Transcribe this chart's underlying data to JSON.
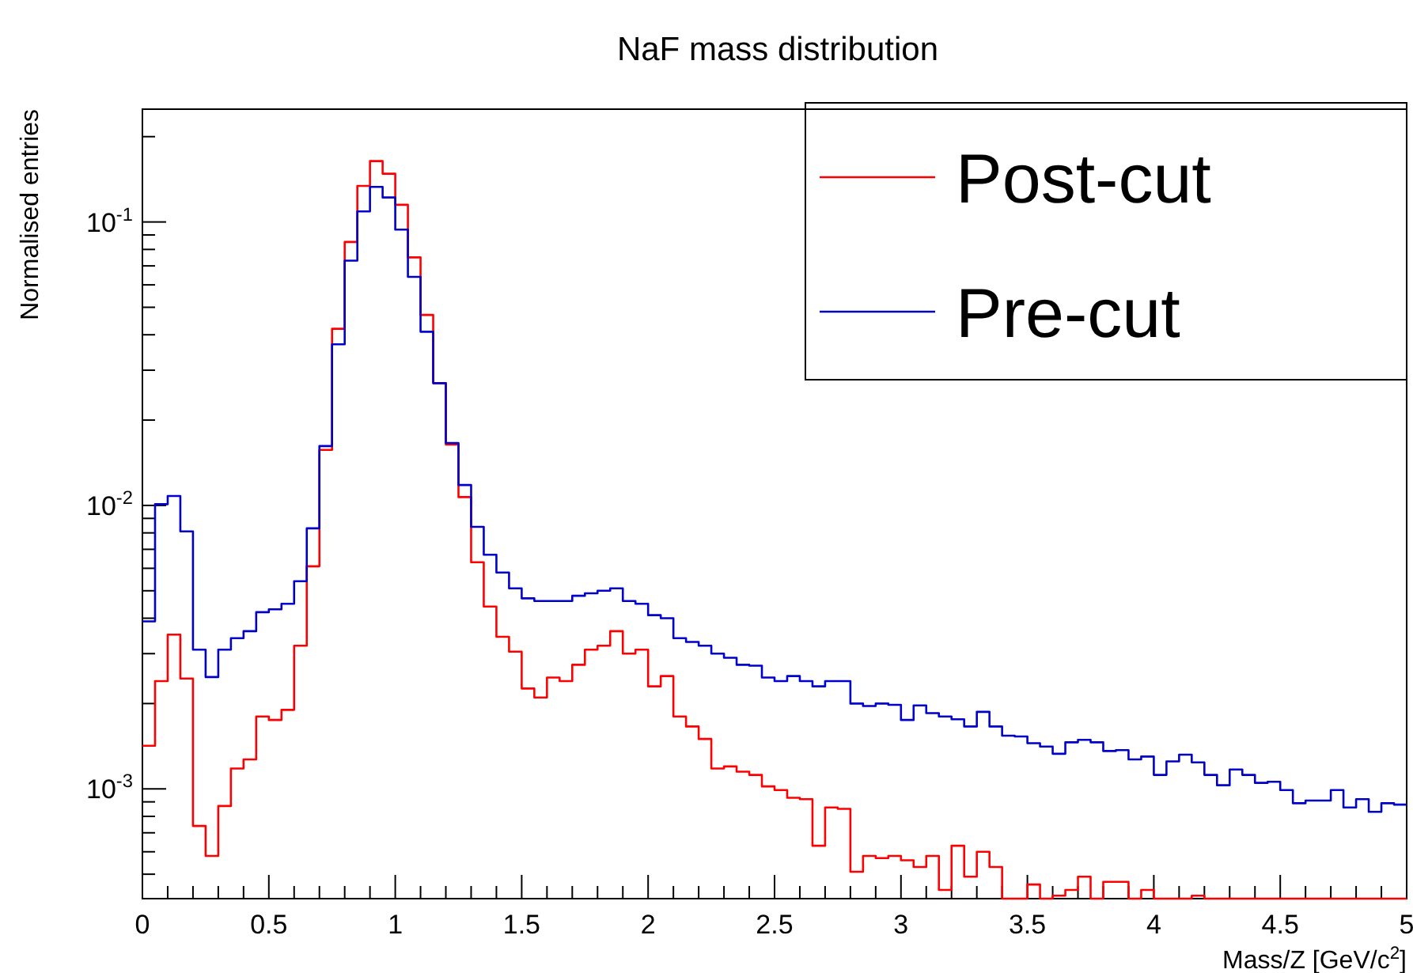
{
  "chart_data": {
    "type": "histogram",
    "title": "NaF mass distribution",
    "xlabel": "Mass/Z [GeV/c$^{2}$]",
    "ylabel": "Normalised entries",
    "bins": [
      0,
      0.05,
      0.1,
      0.15,
      0.2,
      0.25,
      0.3,
      0.35,
      0.4,
      0.45,
      0.5,
      0.55,
      0.6,
      0.65,
      0.7,
      0.75,
      0.8,
      0.85,
      0.9,
      0.95,
      1,
      1.05,
      1.1,
      1.15,
      1.2,
      1.25,
      1.3,
      1.35,
      1.4,
      1.45,
      1.5,
      1.55,
      1.6,
      1.65,
      1.7,
      1.75,
      1.8,
      1.85,
      1.9,
      1.95,
      2,
      2.05,
      2.1,
      2.15,
      2.2,
      2.25,
      2.3,
      2.35,
      2.4,
      2.45,
      2.5,
      2.55,
      2.6,
      2.65,
      2.7,
      2.75,
      2.8,
      2.85,
      2.9,
      2.95,
      3,
      3.05,
      3.1,
      3.15,
      3.2,
      3.25,
      3.3,
      3.35,
      3.4,
      3.45,
      3.5,
      3.55,
      3.6,
      3.65,
      3.7,
      3.75,
      3.8,
      3.85,
      3.9,
      3.95,
      4,
      4.05,
      4.1,
      4.15,
      4.2,
      4.25,
      4.3,
      4.35,
      4.4,
      4.45,
      4.5,
      4.55,
      4.6,
      4.65,
      4.7,
      4.75,
      4.8,
      4.85,
      4.9,
      4.95,
      5
    ],
    "series": [
      {
        "name": "Post-cut",
        "color": "#ff0000",
        "values": [
          0.00142,
          0.0024,
          0.0035,
          0.00245,
          0.00074,
          0.00058,
          0.00087,
          0.00118,
          0.00127,
          0.0018,
          0.00175,
          0.0019,
          0.0032,
          0.0061,
          0.0157,
          0.042,
          0.085,
          0.134,
          0.164,
          0.148,
          0.115,
          0.075,
          0.047,
          0.027,
          0.0164,
          0.0107,
          0.0063,
          0.0044,
          0.00344,
          0.00305,
          0.00226,
          0.0021,
          0.00247,
          0.0024,
          0.00274,
          0.0031,
          0.0032,
          0.0036,
          0.003,
          0.0031,
          0.0023,
          0.0025,
          0.0018,
          0.00166,
          0.0015,
          0.00118,
          0.0012,
          0.00115,
          0.00112,
          0.00102,
          0.00099,
          0.00093,
          0.00092,
          0.00063,
          0.00086,
          0.00085,
          0.00051,
          0.00058,
          0.00057,
          0.00058,
          0.00056,
          0.00053,
          0.00058,
          0.00044,
          0.00063,
          0.00049,
          0.0006,
          0.00053,
          null,
          null,
          0.00046,
          null,
          0.00042,
          0.00044,
          0.00049,
          null,
          0.00047,
          0.00047,
          null,
          0.00044,
          null,
          null,
          null,
          0.00042,
          null,
          null,
          null,
          null,
          null,
          null,
          null,
          null,
          null,
          null,
          null,
          null,
          null,
          null,
          null,
          null
        ]
      },
      {
        "name": "Pre-cut",
        "color": "#0000cc",
        "values": [
          0.0039,
          0.0101,
          0.0108,
          0.0081,
          0.0031,
          0.00248,
          0.0031,
          0.0034,
          0.0036,
          0.0042,
          0.0043,
          0.0045,
          0.0054,
          0.0083,
          0.0162,
          0.037,
          0.073,
          0.109,
          0.133,
          0.122,
          0.094,
          0.064,
          0.041,
          0.027,
          0.0166,
          0.0118,
          0.0084,
          0.0067,
          0.0058,
          0.0051,
          0.0047,
          0.0046,
          0.0046,
          0.0046,
          0.0048,
          0.0049,
          0.005,
          0.0051,
          0.0046,
          0.0045,
          0.0041,
          0.004,
          0.0034,
          0.0033,
          0.0032,
          0.003,
          0.0029,
          0.00274,
          0.00272,
          0.00247,
          0.0024,
          0.0025,
          0.0024,
          0.0023,
          0.0024,
          0.0024,
          0.002,
          0.00196,
          0.002,
          0.00198,
          0.00175,
          0.00197,
          0.00185,
          0.0018,
          0.00176,
          0.00166,
          0.00187,
          0.00166,
          0.00154,
          0.00153,
          0.00145,
          0.00141,
          0.00133,
          0.00146,
          0.00149,
          0.00146,
          0.00136,
          0.00137,
          0.00127,
          0.0013,
          0.00112,
          0.00125,
          0.00132,
          0.00124,
          0.00112,
          0.00103,
          0.00117,
          0.00112,
          0.00105,
          0.00106,
          0.00099,
          0.00089,
          0.00091,
          0.00091,
          0.00099,
          0.00086,
          0.00092,
          0.00083,
          0.00089,
          0.00088
        ]
      }
    ],
    "log": "y",
    "xlim": [
      0,
      5
    ],
    "ylim": [
      0.00041,
      0.25
    ],
    "xticks": [
      0,
      {
        "value": 0.1,
        "label": null
      },
      {
        "value": 0.2,
        "label": null
      },
      {
        "value": 0.3,
        "label": null
      },
      {
        "value": 0.4,
        "label": null
      },
      0.5,
      {
        "value": 0.6,
        "label": null
      },
      {
        "value": 0.7,
        "label": null
      },
      {
        "value": 0.8,
        "label": null
      },
      {
        "value": 0.9,
        "label": null
      },
      1,
      {
        "value": 1.1,
        "label": null
      },
      {
        "value": 1.2,
        "label": null
      },
      {
        "value": 1.3,
        "label": null
      },
      {
        "value": 1.4,
        "label": null
      },
      1.5,
      {
        "value": 1.6,
        "label": null
      },
      {
        "value": 1.7,
        "label": null
      },
      {
        "value": 1.8,
        "label": null
      },
      {
        "value": 1.9,
        "label": null
      },
      2,
      {
        "value": 2.1,
        "label": null
      },
      {
        "value": 2.2,
        "label": null
      },
      {
        "value": 2.3,
        "label": null
      },
      {
        "value": 2.4,
        "label": null
      },
      2.5,
      {
        "value": 2.6,
        "label": null
      },
      {
        "value": 2.7,
        "label": null
      },
      {
        "value": 2.8,
        "label": null
      },
      {
        "value": 2.9,
        "label": null
      },
      3,
      {
        "value": 3.1,
        "label": null
      },
      {
        "value": 3.2,
        "label": null
      },
      {
        "value": 3.3,
        "label": null
      },
      {
        "value": 3.4,
        "label": null
      },
      3.5,
      {
        "value": 3.6,
        "label": null
      },
      {
        "value": 3.7,
        "label": null
      },
      {
        "value": 3.8,
        "label": null
      },
      {
        "value": 3.9,
        "label": null
      },
      4,
      {
        "value": 4.1,
        "label": null
      },
      {
        "value": 4.2,
        "label": null
      },
      {
        "value": 4.3,
        "label": null
      },
      {
        "value": 4.4,
        "label": null
      },
      4.5,
      {
        "value": 4.6,
        "label": null
      },
      {
        "value": 4.7,
        "label": null
      },
      {
        "value": 4.8,
        "label": null
      },
      {
        "value": 4.9,
        "label": null
      },
      5
    ],
    "yticks": [
      {
        "value": 0.0005,
        "label": null
      },
      {
        "value": 0.0006,
        "label": null
      },
      {
        "value": 0.0007,
        "label": null
      },
      {
        "value": 0.0008,
        "label": null
      },
      {
        "value": 0.0009,
        "label": null
      },
      {
        "value": 0.001,
        "label": "10$^{-3}$"
      },
      {
        "value": 0.002,
        "label": null
      },
      {
        "value": 0.003,
        "label": null
      },
      {
        "value": 0.004,
        "label": null
      },
      {
        "value": 0.005,
        "label": null
      },
      {
        "value": 0.006,
        "label": null
      },
      {
        "value": 0.007,
        "label": null
      },
      {
        "value": 0.008,
        "label": null
      },
      {
        "value": 0.009,
        "label": null
      },
      {
        "value": 0.01,
        "label": "10$^{-2}$"
      },
      {
        "value": 0.02,
        "label": null
      },
      {
        "value": 0.03,
        "label": null
      },
      {
        "value": 0.04,
        "label": null
      },
      {
        "value": 0.05,
        "label": null
      },
      {
        "value": 0.06,
        "label": null
      },
      {
        "value": 0.07,
        "label": null
      },
      {
        "value": 0.08,
        "label": null
      },
      {
        "value": 0.09,
        "label": null
      },
      {
        "value": 0.1,
        "label": "10$^{-1}$"
      },
      {
        "value": 0.2,
        "label": null
      }
    ],
    "legend": "top right",
    "grid": false
  }
}
